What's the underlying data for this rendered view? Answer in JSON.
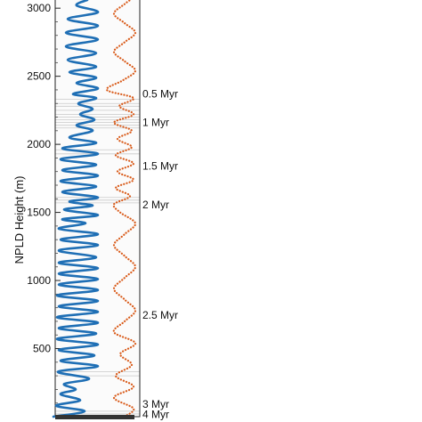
{
  "chart_data": {
    "type": "line",
    "ylabel": "NPLD Height (m)",
    "xlabel": "",
    "title": "",
    "ylim": [
      0,
      3060
    ],
    "yticks": [
      {
        "value": 500,
        "label": "500"
      },
      {
        "value": 1000,
        "label": "1000"
      },
      {
        "value": 1500,
        "label": "1500"
      },
      {
        "value": 2000,
        "label": "2000"
      },
      {
        "value": 2500,
        "label": "2500"
      },
      {
        "value": 3000,
        "label": "3000"
      }
    ],
    "age_markers": [
      {
        "label": "0.5 Myr",
        "height": 2370
      },
      {
        "label": "1 Myr",
        "height": 2160
      },
      {
        "label": "1.5 Myr",
        "height": 1840
      },
      {
        "label": "2 Myr",
        "height": 1555
      },
      {
        "label": "2.5 Myr",
        "height": 745
      },
      {
        "label": "3 Myr",
        "height": 90
      },
      {
        "label": "4 Myr",
        "height": 15
      }
    ],
    "series": [
      {
        "color": "#1f6fb5",
        "style": "solid",
        "values": [
          [
            60,
            0
          ],
          [
            95,
            40
          ],
          [
            63,
            80
          ],
          [
            90,
            120
          ],
          [
            68,
            165
          ],
          [
            85,
            200
          ],
          [
            72,
            240
          ],
          [
            100,
            280
          ],
          [
            65,
            330
          ],
          [
            110,
            370
          ],
          [
            68,
            410
          ],
          [
            106,
            450
          ],
          [
            66,
            490
          ],
          [
            110,
            530
          ],
          [
            64,
            570
          ],
          [
            108,
            610
          ],
          [
            66,
            650
          ],
          [
            110,
            690
          ],
          [
            64,
            730
          ],
          [
            110,
            770
          ],
          [
            66,
            810
          ],
          [
            110,
            850
          ],
          [
            64,
            890
          ],
          [
            110,
            930
          ],
          [
            66,
            970
          ],
          [
            110,
            1010
          ],
          [
            66,
            1050
          ],
          [
            110,
            1090
          ],
          [
            66,
            1130
          ],
          [
            108,
            1170
          ],
          [
            66,
            1220
          ],
          [
            110,
            1260
          ],
          [
            68,
            1300
          ],
          [
            110,
            1340
          ],
          [
            66,
            1380
          ],
          [
            96,
            1420
          ],
          [
            70,
            1450
          ],
          [
            110,
            1480
          ],
          [
            72,
            1520
          ],
          [
            104,
            1550
          ],
          [
            78,
            1580
          ],
          [
            110,
            1610
          ],
          [
            70,
            1650
          ],
          [
            108,
            1690
          ],
          [
            68,
            1730
          ],
          [
            110,
            1770
          ],
          [
            70,
            1810
          ],
          [
            108,
            1850
          ],
          [
            68,
            1890
          ],
          [
            110,
            1930
          ],
          [
            70,
            1970
          ],
          [
            108,
            2010
          ],
          [
            78,
            2050
          ],
          [
            104,
            2100
          ],
          [
            86,
            2140
          ],
          [
            106,
            2180
          ],
          [
            90,
            2220
          ],
          [
            104,
            2260
          ],
          [
            88,
            2300
          ],
          [
            108,
            2340
          ],
          [
            82,
            2370
          ],
          [
            110,
            2410
          ],
          [
            86,
            2450
          ],
          [
            108,
            2490
          ],
          [
            78,
            2530
          ],
          [
            108,
            2570
          ],
          [
            76,
            2620
          ],
          [
            108,
            2670
          ],
          [
            74,
            2720
          ],
          [
            110,
            2770
          ],
          [
            74,
            2820
          ],
          [
            110,
            2870
          ],
          [
            76,
            2920
          ],
          [
            110,
            2970
          ],
          [
            86,
            3020
          ],
          [
            98,
            3060
          ]
        ]
      },
      {
        "color": "#d95b1a",
        "style": "dotted",
        "values": [
          [
            140,
            0
          ],
          [
            150,
            60
          ],
          [
            128,
            140
          ],
          [
            150,
            220
          ],
          [
            130,
            300
          ],
          [
            148,
            380
          ],
          [
            135,
            460
          ],
          [
            152,
            540
          ],
          [
            128,
            620
          ],
          [
            140,
            700
          ],
          [
            152,
            780
          ],
          [
            140,
            860
          ],
          [
            128,
            940
          ],
          [
            140,
            1020
          ],
          [
            152,
            1100
          ],
          [
            140,
            1180
          ],
          [
            128,
            1260
          ],
          [
            140,
            1340
          ],
          [
            152,
            1420
          ],
          [
            135,
            1500
          ],
          [
            128,
            1560
          ],
          [
            146,
            1620
          ],
          [
            130,
            1680
          ],
          [
            150,
            1740
          ],
          [
            132,
            1800
          ],
          [
            150,
            1860
          ],
          [
            130,
            1920
          ],
          [
            148,
            1980
          ],
          [
            132,
            2040
          ],
          [
            148,
            2100
          ],
          [
            128,
            2160
          ],
          [
            150,
            2220
          ],
          [
            134,
            2280
          ],
          [
            150,
            2340
          ],
          [
            120,
            2400
          ],
          [
            138,
            2470
          ],
          [
            152,
            2540
          ],
          [
            140,
            2610
          ],
          [
            128,
            2680
          ],
          [
            140,
            2750
          ],
          [
            152,
            2820
          ],
          [
            140,
            2890
          ],
          [
            128,
            2960
          ],
          [
            140,
            3030
          ],
          [
            146,
            3060
          ]
        ]
      }
    ],
    "grid": false,
    "legend": "none"
  }
}
